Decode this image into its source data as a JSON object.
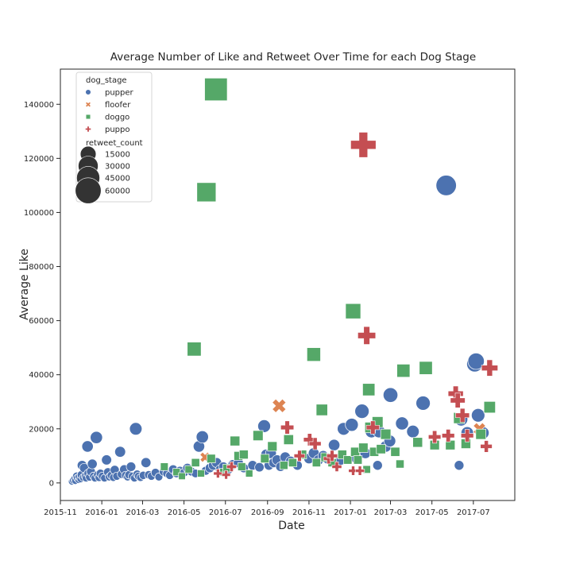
{
  "chart_data": {
    "type": "scatter",
    "title": "Average Number of Like and Retweet Over Time for each Dog Stage",
    "xlabel": "Date",
    "ylabel": "Average Like",
    "xlim": [
      "2015-11-01",
      "2017-08-31"
    ],
    "ylim": [
      -6500,
      153000
    ],
    "x_ticks": [
      "2015-11",
      "2016-01",
      "2016-03",
      "2016-05",
      "2016-07",
      "2016-09",
      "2016-11",
      "2017-01",
      "2017-03",
      "2017-05",
      "2017-07"
    ],
    "y_ticks": [
      0,
      20000,
      40000,
      60000,
      80000,
      100000,
      120000,
      140000
    ],
    "grid": false,
    "legend": {
      "placement": "upper-left",
      "hue_title": "dog_stage",
      "size_title": "retweet_count",
      "size_entries": [
        15000,
        30000,
        45000,
        60000
      ]
    },
    "series": [
      {
        "name": "pupper",
        "color": "#4c72b0",
        "marker": "circle",
        "points": [
          [
            "2015-11-18",
            500,
            300
          ],
          [
            "2015-11-20",
            1000,
            500
          ],
          [
            "2015-11-22",
            1500,
            700
          ],
          [
            "2015-11-23",
            800,
            400
          ],
          [
            "2015-11-25",
            2500,
            1000
          ],
          [
            "2015-11-26",
            1800,
            700
          ],
          [
            "2015-11-28",
            1200,
            500
          ],
          [
            "2015-11-29",
            2200,
            900
          ],
          [
            "2015-12-01",
            1500,
            600
          ],
          [
            "2015-12-02",
            3000,
            1200
          ],
          [
            "2015-12-03",
            6500,
            2500
          ],
          [
            "2015-12-05",
            2000,
            800
          ],
          [
            "2015-12-06",
            5500,
            2000
          ],
          [
            "2015-12-08",
            2500,
            1000
          ],
          [
            "2015-12-09",
            1800,
            700
          ],
          [
            "2015-12-11",
            13500,
            5000
          ],
          [
            "2015-12-12",
            3500,
            1300
          ],
          [
            "2015-12-14",
            2200,
            900
          ],
          [
            "2015-12-16",
            4200,
            1600
          ],
          [
            "2015-12-18",
            7000,
            2600
          ],
          [
            "2015-12-20",
            2500,
            1000
          ],
          [
            "2015-12-22",
            1800,
            700
          ],
          [
            "2015-12-24",
            16800,
            6500
          ],
          [
            "2015-12-26",
            3000,
            1100
          ],
          [
            "2015-12-28",
            2000,
            800
          ],
          [
            "2015-12-30",
            3500,
            1300
          ],
          [
            "2016-01-02",
            2500,
            1000
          ],
          [
            "2016-01-05",
            1800,
            700
          ],
          [
            "2016-01-08",
            8500,
            3000
          ],
          [
            "2016-01-10",
            4000,
            1500
          ],
          [
            "2016-01-12",
            2200,
            800
          ],
          [
            "2016-01-15",
            2800,
            1000
          ],
          [
            "2016-01-18",
            2000,
            700
          ],
          [
            "2016-01-20",
            4800,
            1800
          ],
          [
            "2016-01-23",
            2500,
            900
          ],
          [
            "2016-01-28",
            11500,
            4000
          ],
          [
            "2016-01-30",
            3200,
            1200
          ],
          [
            "2016-02-03",
            5000,
            1900
          ],
          [
            "2016-02-05",
            2800,
            1000
          ],
          [
            "2016-02-08",
            2200,
            800
          ],
          [
            "2016-02-10",
            3000,
            1100
          ],
          [
            "2016-02-13",
            6000,
            2200
          ],
          [
            "2016-02-15",
            2500,
            900
          ],
          [
            "2016-02-18",
            1800,
            700
          ],
          [
            "2016-02-20",
            20000,
            7000
          ],
          [
            "2016-02-22",
            3200,
            1200
          ],
          [
            "2016-02-24",
            2500,
            900
          ],
          [
            "2016-02-27",
            2000,
            700
          ],
          [
            "2016-03-02",
            2800,
            1000
          ],
          [
            "2016-03-06",
            7500,
            2800
          ],
          [
            "2016-03-10",
            3000,
            1100
          ],
          [
            "2016-03-14",
            2500,
            900
          ],
          [
            "2016-03-20",
            3800,
            1400
          ],
          [
            "2016-03-25",
            2200,
            800
          ],
          [
            "2016-04-01",
            4200,
            1500
          ],
          [
            "2016-04-06",
            3500,
            1300
          ],
          [
            "2016-04-10",
            2800,
            1000
          ],
          [
            "2016-04-15",
            5000,
            1800
          ],
          [
            "2016-04-20",
            3500,
            1300
          ],
          [
            "2016-04-25",
            4500,
            1600
          ],
          [
            "2016-05-01",
            3800,
            1400
          ],
          [
            "2016-05-06",
            5500,
            2000
          ],
          [
            "2016-05-12",
            4200,
            1500
          ],
          [
            "2016-05-18",
            3500,
            1300
          ],
          [
            "2016-05-23",
            13500,
            5000
          ],
          [
            "2016-05-28",
            17000,
            6500
          ],
          [
            "2016-06-02",
            4500,
            1600
          ],
          [
            "2016-06-08",
            5500,
            2000
          ],
          [
            "2016-06-13",
            6500,
            2400
          ],
          [
            "2016-06-18",
            7500,
            2800
          ],
          [
            "2016-06-23",
            5000,
            1800
          ],
          [
            "2016-06-28",
            6000,
            2200
          ],
          [
            "2016-07-05",
            4800,
            1700
          ],
          [
            "2016-07-12",
            6800,
            2500
          ],
          [
            "2016-07-20",
            7500,
            2700
          ],
          [
            "2016-07-28",
            5500,
            2000
          ],
          [
            "2016-08-10",
            6500,
            2400
          ],
          [
            "2016-08-20",
            5800,
            2100
          ],
          [
            "2016-08-27",
            21000,
            7500
          ],
          [
            "2016-08-30",
            10500,
            3800
          ],
          [
            "2016-09-03",
            6500,
            2400
          ],
          [
            "2016-09-06",
            11000,
            4000
          ],
          [
            "2016-09-10",
            7500,
            2700
          ],
          [
            "2016-09-15",
            8500,
            3100
          ],
          [
            "2016-09-20",
            6000,
            2200
          ],
          [
            "2016-09-27",
            9500,
            3500
          ],
          [
            "2016-10-05",
            8000,
            2900
          ],
          [
            "2016-10-15",
            6500,
            2400
          ],
          [
            "2016-11-01",
            9000,
            3300
          ],
          [
            "2016-11-08",
            11000,
            4000
          ],
          [
            "2016-11-15",
            8500,
            3100
          ],
          [
            "2016-11-22",
            10000,
            3600
          ],
          [
            "2016-11-28",
            9000,
            3300
          ],
          [
            "2016-12-08",
            14000,
            5000
          ],
          [
            "2016-12-18",
            8500,
            3100
          ],
          [
            "2016-12-22",
            20000,
            7200
          ],
          [
            "2017-01-03",
            21500,
            8000
          ],
          [
            "2017-01-10",
            9000,
            3300
          ],
          [
            "2017-01-18",
            26500,
            11000
          ],
          [
            "2017-01-23",
            11000,
            4000
          ],
          [
            "2017-02-01",
            19000,
            7000
          ],
          [
            "2017-02-10",
            6500,
            2400
          ],
          [
            "2017-02-12",
            19000,
            7000
          ],
          [
            "2017-02-22",
            13500,
            5000
          ],
          [
            "2017-02-28",
            15500,
            5600
          ],
          [
            "2017-03-01",
            32500,
            12000
          ],
          [
            "2017-03-18",
            22000,
            8000
          ],
          [
            "2017-04-03",
            19000,
            7000
          ],
          [
            "2017-04-18",
            29500,
            11000
          ],
          [
            "2017-05-22",
            110000,
            32000
          ],
          [
            "2017-06-10",
            6500,
            2400
          ],
          [
            "2017-06-13",
            23500,
            8500
          ],
          [
            "2017-06-22",
            18500,
            6800
          ],
          [
            "2017-07-03",
            44000,
            16000
          ],
          [
            "2017-07-05",
            45000,
            17000
          ],
          [
            "2017-07-08",
            25000,
            9000
          ],
          [
            "2017-07-15",
            18500,
            6800
          ]
        ]
      },
      {
        "name": "floofer",
        "color": "#dd8452",
        "marker": "x",
        "points": [
          [
            "2016-06-01",
            9500,
            3000
          ],
          [
            "2016-09-18",
            28500,
            9500
          ],
          [
            "2017-07-10",
            20000,
            6500
          ]
        ]
      },
      {
        "name": "doggo",
        "color": "#55a868",
        "marker": "square",
        "points": [
          [
            "2016-04-02",
            6000,
            1800
          ],
          [
            "2016-04-20",
            4000,
            1300
          ],
          [
            "2016-04-28",
            2500,
            900
          ],
          [
            "2016-05-08",
            5000,
            1600
          ],
          [
            "2016-05-16",
            49500,
            17000
          ],
          [
            "2016-05-18",
            7500,
            2400
          ],
          [
            "2016-05-26",
            3500,
            1200
          ],
          [
            "2016-06-03",
            107500,
            42000
          ],
          [
            "2016-06-10",
            9000,
            3000
          ],
          [
            "2016-06-17",
            145500,
            65000
          ],
          [
            "2016-06-28",
            4000,
            1400
          ],
          [
            "2016-07-03",
            5500,
            1800
          ],
          [
            "2016-07-15",
            15500,
            5000
          ],
          [
            "2016-07-20",
            10000,
            3300
          ],
          [
            "2016-07-25",
            6000,
            2000
          ],
          [
            "2016-07-28",
            10500,
            3500
          ],
          [
            "2016-08-05",
            3500,
            1200
          ],
          [
            "2016-08-18",
            17500,
            5800
          ],
          [
            "2016-08-28",
            9000,
            3000
          ],
          [
            "2016-09-08",
            13500,
            4500
          ],
          [
            "2016-09-25",
            6500,
            2200
          ],
          [
            "2016-10-02",
            16000,
            5200
          ],
          [
            "2016-10-08",
            7500,
            2500
          ],
          [
            "2016-10-22",
            10500,
            3500
          ],
          [
            "2016-11-08",
            47500,
            16000
          ],
          [
            "2016-11-12",
            7500,
            2500
          ],
          [
            "2016-11-20",
            27000,
            9000
          ],
          [
            "2016-11-25",
            9500,
            3200
          ],
          [
            "2016-12-05",
            7500,
            2500
          ],
          [
            "2016-12-20",
            10500,
            3500
          ],
          [
            "2016-12-28",
            8500,
            2800
          ],
          [
            "2017-01-05",
            63500,
            22000
          ],
          [
            "2017-01-08",
            11500,
            3800
          ],
          [
            "2017-01-12",
            8500,
            2800
          ],
          [
            "2017-01-20",
            13000,
            4300
          ],
          [
            "2017-01-25",
            5000,
            1700
          ],
          [
            "2017-01-28",
            34500,
            11500
          ],
          [
            "2017-01-30",
            20500,
            6800
          ],
          [
            "2017-02-05",
            11500,
            3800
          ],
          [
            "2017-02-10",
            22500,
            7500
          ],
          [
            "2017-02-15",
            12500,
            4100
          ],
          [
            "2017-02-22",
            18000,
            6000
          ],
          [
            "2017-03-08",
            11500,
            3800
          ],
          [
            "2017-03-20",
            41500,
            14000
          ],
          [
            "2017-03-15",
            7000,
            2300
          ],
          [
            "2017-04-10",
            15000,
            5000
          ],
          [
            "2017-04-22",
            42500,
            14000
          ],
          [
            "2017-05-05",
            14000,
            4600
          ],
          [
            "2017-05-28",
            14000,
            4600
          ],
          [
            "2017-06-10",
            24000,
            8000
          ],
          [
            "2017-06-20",
            14500,
            4800
          ],
          [
            "2017-07-12",
            18000,
            6000
          ],
          [
            "2017-07-25",
            28000,
            9300
          ]
        ]
      },
      {
        "name": "puppo",
        "color": "#c44e52",
        "marker": "plus",
        "points": [
          [
            "2016-06-20",
            3500,
            1200
          ],
          [
            "2016-07-02",
            3000,
            1000
          ],
          [
            "2016-07-10",
            6000,
            2000
          ],
          [
            "2016-09-30",
            20500,
            7000
          ],
          [
            "2016-10-18",
            10000,
            3400
          ],
          [
            "2016-11-02",
            16000,
            5500
          ],
          [
            "2016-11-10",
            14500,
            5000
          ],
          [
            "2016-11-30",
            9000,
            3000
          ],
          [
            "2016-12-05",
            10000,
            3400
          ],
          [
            "2016-12-12",
            6000,
            2000
          ],
          [
            "2017-01-05",
            4500,
            1500
          ],
          [
            "2017-01-15",
            4500,
            1500
          ],
          [
            "2017-01-20",
            125000,
            50000
          ],
          [
            "2017-01-25",
            54500,
            19000
          ],
          [
            "2017-02-03",
            20500,
            7000
          ],
          [
            "2017-05-05",
            17000,
            5800
          ],
          [
            "2017-05-25",
            17500,
            6000
          ],
          [
            "2017-06-05",
            33000,
            11500
          ],
          [
            "2017-06-08",
            30500,
            10500
          ],
          [
            "2017-06-15",
            25000,
            8600
          ],
          [
            "2017-06-22",
            17500,
            6000
          ],
          [
            "2017-07-20",
            13500,
            4600
          ],
          [
            "2017-07-25",
            42500,
            14500
          ]
        ]
      }
    ]
  }
}
